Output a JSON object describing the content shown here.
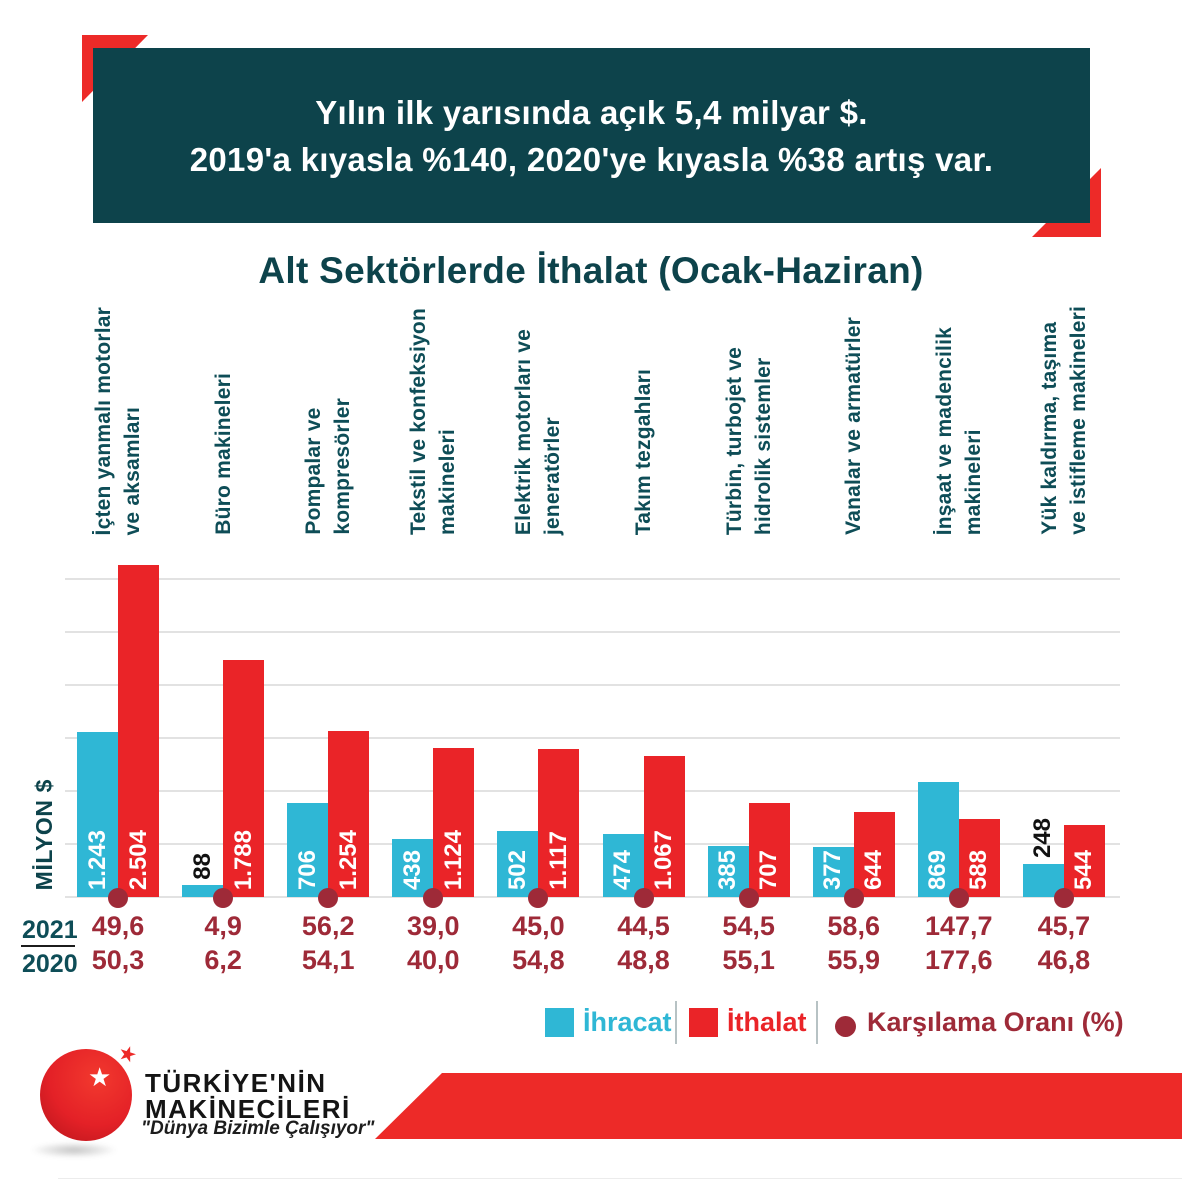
{
  "banner": {
    "line1": "Yılın ilk yarısında açık 5,4 milyar $.",
    "line2": "2019'a kıyasla %140, 2020'ye kıyasla %38 artış var."
  },
  "chart_data": {
    "type": "bar",
    "title": "Alt Sektörlerde İthalat (Ocak-Haziran)",
    "ylabel": "MİLYON $",
    "ylim": [
      0,
      2600
    ],
    "gridline_step": 400,
    "grid": true,
    "legend_position": "bottom",
    "categories": [
      [
        "İçten yanmalı motorlar",
        "ve aksamları"
      ],
      [
        "Büro makineleri"
      ],
      [
        "Pompalar ve",
        "kompresörler"
      ],
      [
        "Tekstil ve konfeksiyon",
        "makineleri"
      ],
      [
        "Elektrik motorları ve",
        "jeneratörler"
      ],
      [
        "Takım tezgahları"
      ],
      [
        "Türbin, turbojet ve",
        "hidrolik sistemler"
      ],
      [
        "Vanalar ve armatürler"
      ],
      [
        "İnşaat ve madencilik",
        "makineleri"
      ],
      [
        "Yük kaldırma, taşıma",
        "ve istifleme makineleri"
      ]
    ],
    "series": [
      {
        "name": "İhracat",
        "color": "#2fb7d5",
        "values": [
          1243,
          88,
          706,
          438,
          502,
          474,
          385,
          377,
          869,
          248
        ],
        "display": [
          "1.243",
          "88",
          "706",
          "438",
          "502",
          "474",
          "385",
          "377",
          "869",
          "248"
        ]
      },
      {
        "name": "İthalat",
        "color": "#ea2428",
        "values": [
          2504,
          1788,
          1254,
          1124,
          1117,
          1067,
          707,
          644,
          588,
          544
        ],
        "display": [
          "2.504",
          "1.788",
          "1.254",
          "1.124",
          "1.117",
          "1.067",
          "707",
          "644",
          "588",
          "544"
        ]
      }
    ],
    "coverage_ratio": {
      "name": "Karşılama Oranı (%)",
      "color": "#9e2a38",
      "y2021": [
        "49,6",
        "4,9",
        "56,2",
        "39,0",
        "45,0",
        "44,5",
        "54,5",
        "58,6",
        "147,7",
        "45,7"
      ],
      "y2020": [
        "50,3",
        "6,2",
        "54,1",
        "40,0",
        "54,8",
        "48,8",
        "55,1",
        "55,9",
        "177,6",
        "46,8"
      ]
    },
    "row_labels": {
      "y2021": "2021",
      "y2020": "2020"
    },
    "legend": [
      {
        "label": "İhracat",
        "color": "#2fb7d5",
        "marker": "square"
      },
      {
        "label": "İthalat",
        "color": "#ea2428",
        "marker": "square"
      },
      {
        "label": "Karşılama Oranı (%)",
        "color": "#9e2a38",
        "marker": "dot"
      }
    ]
  },
  "logo": {
    "line1": "TÜRKİYE'NİN",
    "line2": "MAKİNECİLERİ",
    "tagline": "\"Dünya Bizimle Çalışıyor\""
  },
  "colors": {
    "teal": "#0d434b",
    "cyan": "#2fb7d5",
    "red": "#ea2428",
    "maroon": "#9e2a38",
    "grid": "#e2e2e2"
  }
}
